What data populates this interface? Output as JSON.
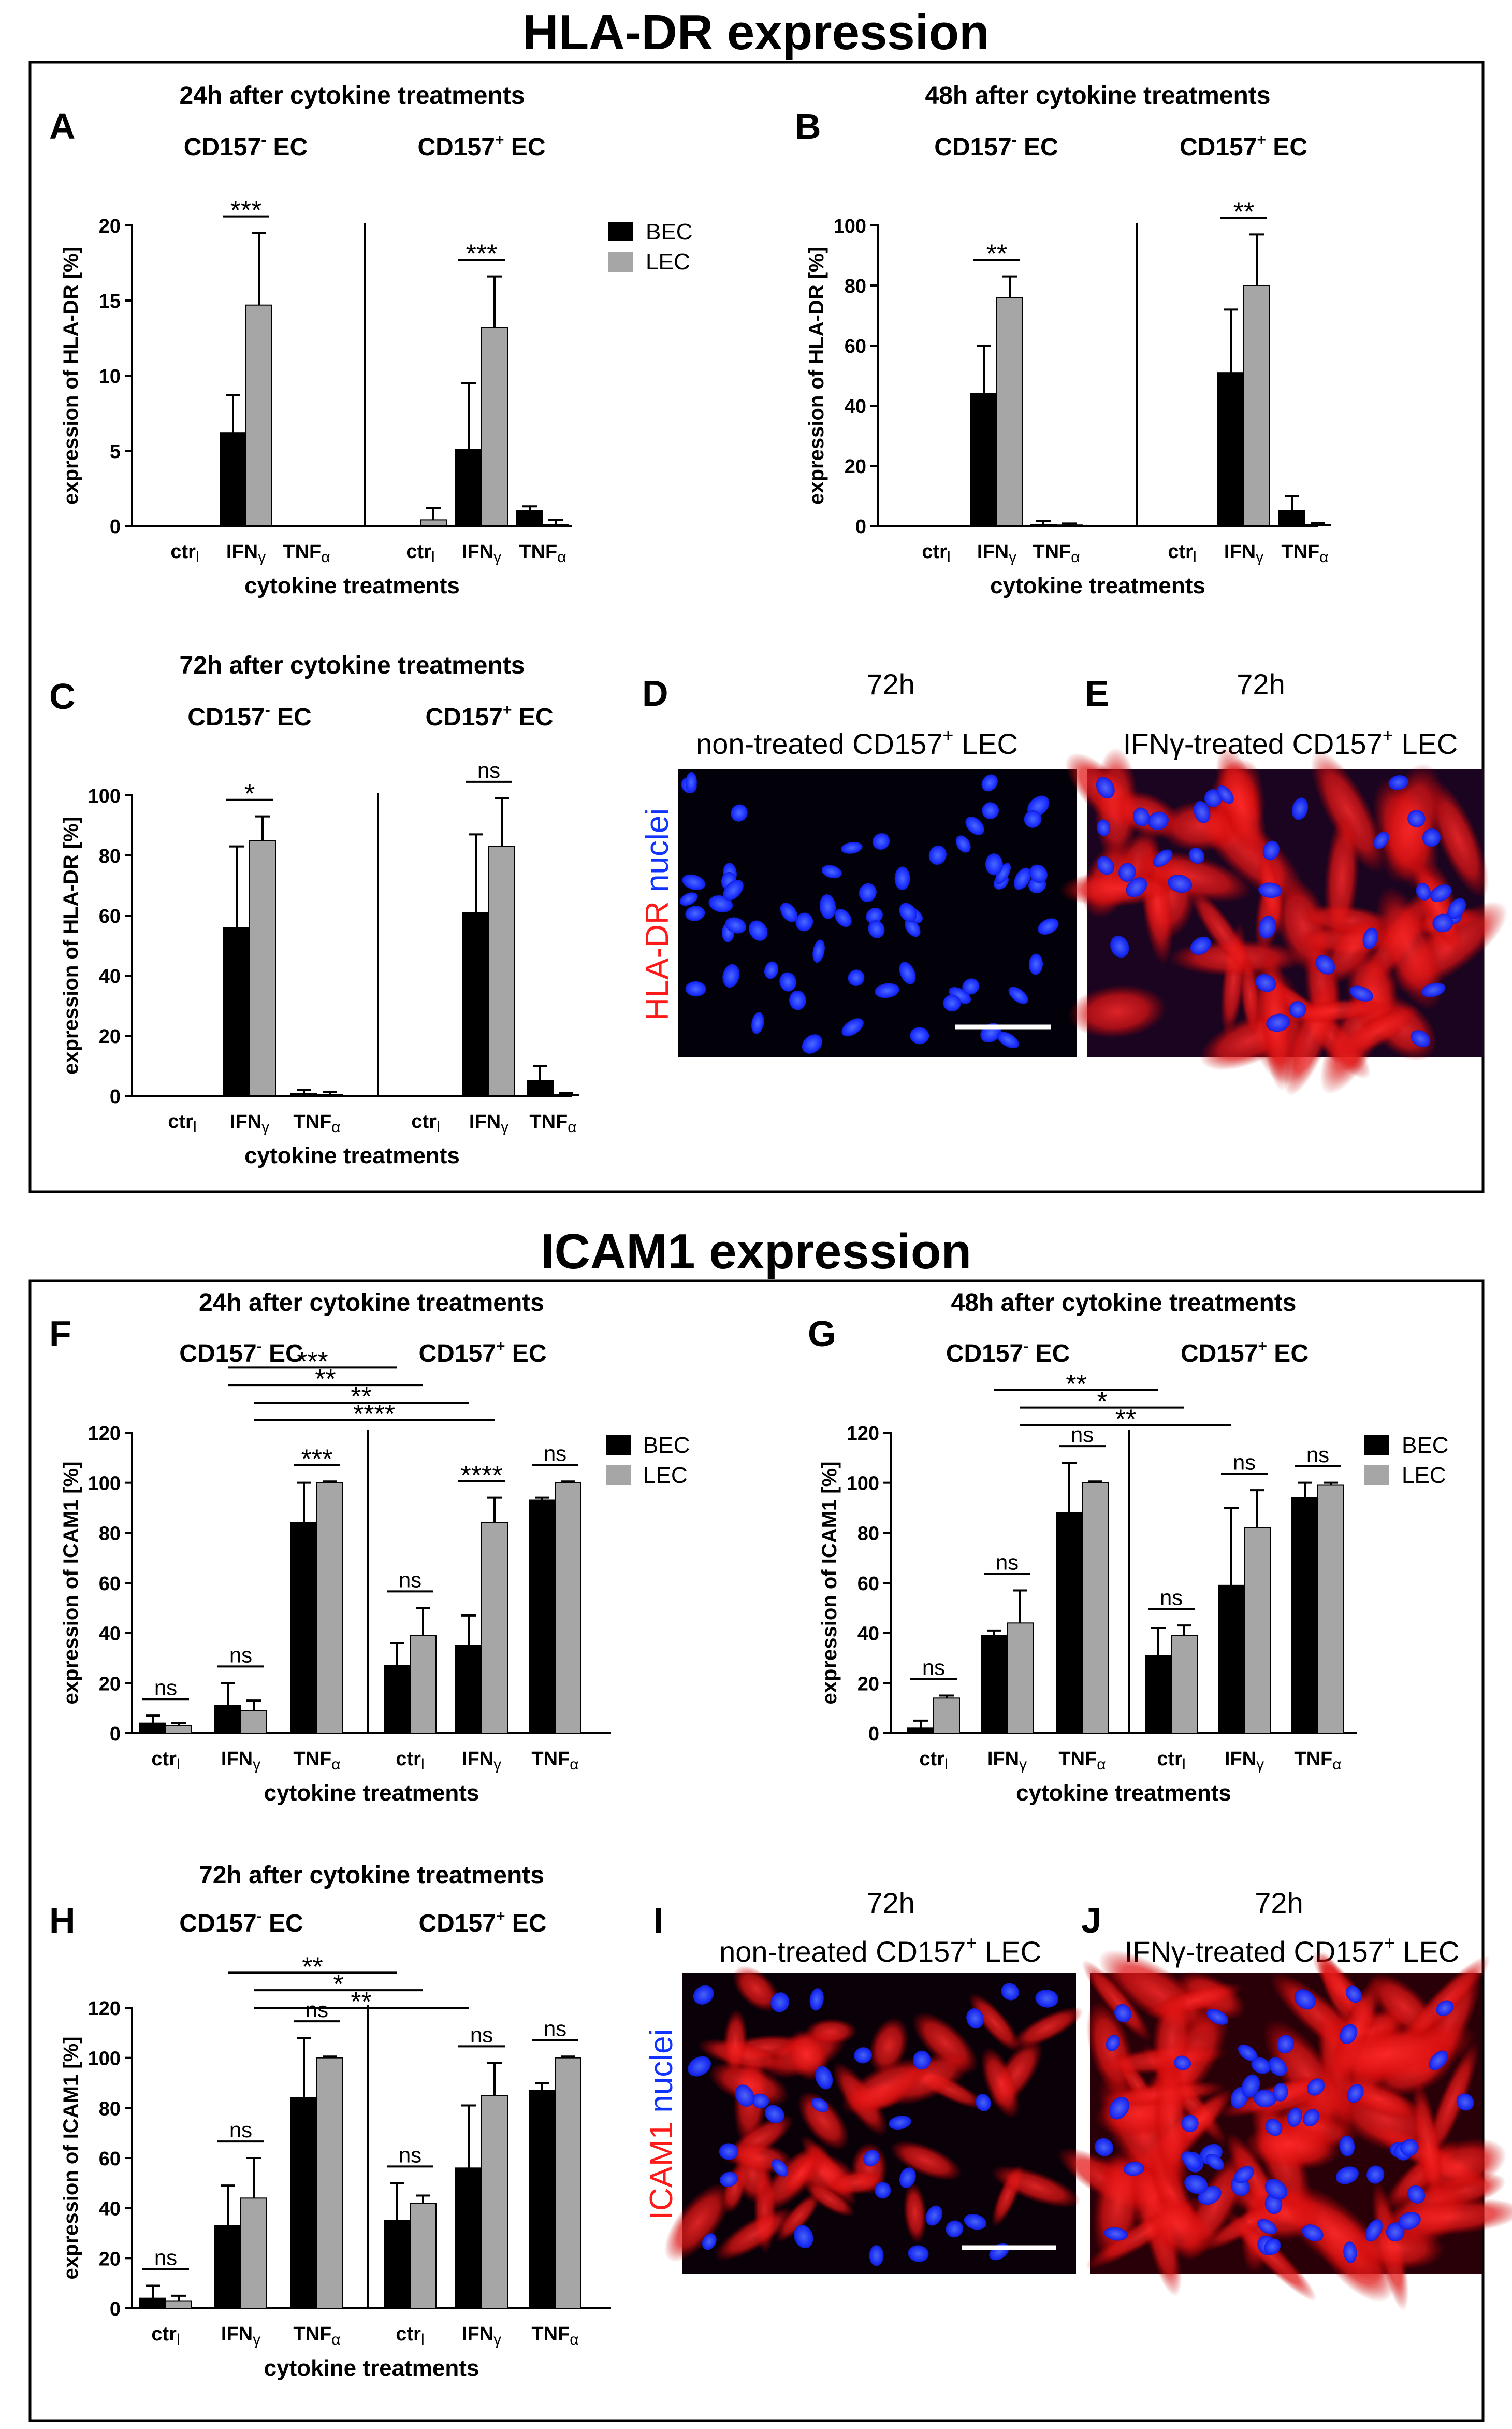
{
  "sections": {
    "hla_title": "HLA-DR expression",
    "icam_title": "ICAM1 expression"
  },
  "colors": {
    "bec": "#000000",
    "lec": "#a6a6a6",
    "nuclei": "#1133ff",
    "marker": "#ff1a1a",
    "micro_bg": "#0a0014"
  },
  "common": {
    "xlabel": "cytokine treatments",
    "neg_group": "CD157",
    "pos_group": "CD157",
    "neg_sign": "-",
    "pos_sign": "+",
    "ec": "EC",
    "legend": [
      "BEC",
      "LEC"
    ]
  },
  "chart_data": [
    {
      "id": "A",
      "type": "bar",
      "title": "24h after cytokine treatments",
      "ylabel": "expression of HLA-DR [%]",
      "ylim": [
        0,
        20
      ],
      "yticks": [
        0,
        5,
        10,
        15,
        20
      ],
      "categories": [
        "ctrl",
        "IFNγ",
        "TNFα",
        "ctrl",
        "IFNγ",
        "TNFα"
      ],
      "series": [
        {
          "name": "BEC",
          "values": [
            0,
            6.2,
            0,
            0,
            5.1,
            1.0
          ],
          "errors": [
            0,
            2.5,
            0,
            0,
            4.4,
            0.3
          ]
        },
        {
          "name": "LEC",
          "values": [
            0,
            14.7,
            0,
            0.4,
            13.2,
            0.1
          ],
          "errors": [
            0,
            4.8,
            0,
            0.8,
            3.4,
            0.3
          ]
        }
      ],
      "brackets": [
        {
          "label": "***",
          "from": [
            1,
            0
          ],
          "to": [
            1,
            1
          ],
          "local": true
        },
        {
          "label": "***",
          "from": [
            4,
            0
          ],
          "to": [
            4,
            1
          ],
          "local": true
        }
      ],
      "legend": true
    },
    {
      "id": "B",
      "type": "bar",
      "title": "48h after cytokine treatments",
      "ylabel": "expression of HLA-DR [%]",
      "ylim": [
        0,
        100
      ],
      "yticks": [
        0,
        20,
        40,
        60,
        80,
        100
      ],
      "categories": [
        "ctrl",
        "IFNγ",
        "TNFα",
        "ctrl",
        "IFNγ",
        "TNFα"
      ],
      "series": [
        {
          "name": "BEC",
          "values": [
            0,
            44,
            0.5,
            0,
            51,
            5
          ],
          "errors": [
            0,
            16,
            1.2,
            0,
            21,
            5
          ]
        },
        {
          "name": "LEC",
          "values": [
            0,
            76,
            0.3,
            0,
            80,
            0.4
          ],
          "errors": [
            0,
            7,
            0.5,
            0,
            17,
            0.6
          ]
        }
      ],
      "brackets": [
        {
          "label": "**",
          "from": [
            1,
            0
          ],
          "to": [
            1,
            1
          ],
          "local": true
        },
        {
          "label": "**",
          "from": [
            4,
            0
          ],
          "to": [
            4,
            1
          ],
          "local": true
        }
      ],
      "legend": false
    },
    {
      "id": "C",
      "type": "bar",
      "title": "72h after cytokine treatments",
      "ylabel": "expression of HLA-DR [%]",
      "ylim": [
        0,
        100
      ],
      "yticks": [
        0,
        20,
        40,
        60,
        80,
        100
      ],
      "categories": [
        "ctrl",
        "IFNγ",
        "TNFα",
        "ctrl",
        "IFNγ",
        "TNFα"
      ],
      "series": [
        {
          "name": "BEC",
          "values": [
            0,
            56,
            0.8,
            0,
            61,
            5
          ],
          "errors": [
            0,
            27,
            1.2,
            0,
            26,
            5
          ]
        },
        {
          "name": "LEC",
          "values": [
            0,
            85,
            0.5,
            0,
            83,
            0.5
          ],
          "errors": [
            0,
            8,
            0.8,
            0,
            16,
            0.5
          ]
        }
      ],
      "brackets": [
        {
          "label": "*",
          "from": [
            1,
            0
          ],
          "to": [
            1,
            1
          ],
          "local": true
        },
        {
          "label": "ns",
          "from": [
            4,
            0
          ],
          "to": [
            4,
            1
          ],
          "local": true
        }
      ],
      "legend": false
    },
    {
      "id": "F",
      "type": "bar",
      "title": "24h after cytokine treatments",
      "ylabel": "expression of ICAM1 [%]",
      "ylim": [
        0,
        120
      ],
      "yticks": [
        0,
        20,
        40,
        60,
        80,
        100,
        120
      ],
      "categories": [
        "ctrl",
        "IFNγ",
        "TNFα",
        "ctrl",
        "IFNγ",
        "TNFα"
      ],
      "series": [
        {
          "name": "BEC",
          "values": [
            4,
            11,
            84,
            27,
            35,
            93
          ],
          "errors": [
            3,
            9,
            16,
            9,
            12,
            1
          ]
        },
        {
          "name": "LEC",
          "values": [
            3,
            9,
            100,
            39,
            84,
            100
          ],
          "errors": [
            1,
            4,
            0.5,
            11,
            10,
            0.5
          ]
        }
      ],
      "brackets": [
        {
          "label": "ns",
          "from": [
            0,
            0
          ],
          "to": [
            0,
            1
          ],
          "local": true
        },
        {
          "label": "ns",
          "from": [
            1,
            0
          ],
          "to": [
            1,
            1
          ],
          "local": true
        },
        {
          "label": "***",
          "from": [
            2,
            0
          ],
          "to": [
            2,
            1
          ],
          "local": true
        },
        {
          "label": "ns",
          "from": [
            3,
            0
          ],
          "to": [
            3,
            1
          ],
          "local": true
        },
        {
          "label": "****",
          "from": [
            4,
            0
          ],
          "to": [
            4,
            1
          ],
          "local": true
        },
        {
          "label": "ns",
          "from": [
            5,
            0
          ],
          "to": [
            5,
            1
          ],
          "local": true
        },
        {
          "label": "***",
          "from": [
            1,
            0
          ],
          "to": [
            3,
            0
          ],
          "level": 146
        },
        {
          "label": "**",
          "from": [
            1,
            0
          ],
          "to": [
            3,
            1
          ],
          "level": 139
        },
        {
          "label": "**",
          "from": [
            1,
            1
          ],
          "to": [
            4,
            0
          ],
          "level": 132
        },
        {
          "label": "****",
          "from": [
            1,
            1
          ],
          "to": [
            4,
            1
          ],
          "level": 125
        }
      ],
      "legend": true
    },
    {
      "id": "G",
      "type": "bar",
      "title": "48h after cytokine treatments",
      "ylabel": "expression of ICAM1 [%]",
      "ylim": [
        0,
        120
      ],
      "yticks": [
        0,
        20,
        40,
        60,
        80,
        100,
        120
      ],
      "categories": [
        "ctrl",
        "IFNγ",
        "TNFα",
        "ctrl",
        "IFNγ",
        "TNFα"
      ],
      "series": [
        {
          "name": "BEC",
          "values": [
            2,
            39,
            88,
            31,
            59,
            94
          ],
          "errors": [
            3,
            2,
            20,
            11,
            31,
            6
          ]
        },
        {
          "name": "LEC",
          "values": [
            14,
            44,
            100,
            39,
            82,
            99
          ],
          "errors": [
            1,
            13,
            0.5,
            4,
            15,
            1
          ]
        }
      ],
      "brackets": [
        {
          "label": "ns",
          "from": [
            0,
            0
          ],
          "to": [
            0,
            1
          ],
          "local": true
        },
        {
          "label": "ns",
          "from": [
            1,
            0
          ],
          "to": [
            1,
            1
          ],
          "local": true
        },
        {
          "label": "ns",
          "from": [
            2,
            0
          ],
          "to": [
            2,
            1
          ],
          "local": true
        },
        {
          "label": "ns",
          "from": [
            3,
            0
          ],
          "to": [
            3,
            1
          ],
          "local": true
        },
        {
          "label": "ns",
          "from": [
            4,
            0
          ],
          "to": [
            4,
            1
          ],
          "local": true
        },
        {
          "label": "ns",
          "from": [
            5,
            0
          ],
          "to": [
            5,
            1
          ],
          "local": true
        },
        {
          "label": "**",
          "from": [
            1,
            0
          ],
          "to": [
            3,
            0
          ],
          "level": 137
        },
        {
          "label": "*",
          "from": [
            1,
            1
          ],
          "to": [
            3,
            1
          ],
          "level": 130
        },
        {
          "label": "**",
          "from": [
            1,
            1
          ],
          "to": [
            4,
            0
          ],
          "level": 123
        }
      ],
      "legend": true
    },
    {
      "id": "H",
      "type": "bar",
      "title": "72h after cytokine treatments",
      "ylabel": "expression of ICAM1 [%]",
      "ylim": [
        0,
        120
      ],
      "yticks": [
        0,
        20,
        40,
        60,
        80,
        100,
        120
      ],
      "categories": [
        "ctrl",
        "IFNγ",
        "TNFα",
        "ctrl",
        "IFNγ",
        "TNFα"
      ],
      "series": [
        {
          "name": "BEC",
          "values": [
            4,
            33,
            84,
            35,
            56,
            87
          ],
          "errors": [
            5,
            16,
            24,
            15,
            25,
            3
          ]
        },
        {
          "name": "LEC",
          "values": [
            3,
            44,
            100,
            42,
            85,
            100
          ],
          "errors": [
            2,
            16,
            0.5,
            3,
            13,
            0.5
          ]
        }
      ],
      "brackets": [
        {
          "label": "ns",
          "from": [
            0,
            0
          ],
          "to": [
            0,
            1
          ],
          "local": true
        },
        {
          "label": "ns",
          "from": [
            1,
            0
          ],
          "to": [
            1,
            1
          ],
          "local": true
        },
        {
          "label": "ns",
          "from": [
            2,
            0
          ],
          "to": [
            2,
            1
          ],
          "local": true
        },
        {
          "label": "ns",
          "from": [
            3,
            0
          ],
          "to": [
            3,
            1
          ],
          "local": true
        },
        {
          "label": "ns",
          "from": [
            4,
            0
          ],
          "to": [
            4,
            1
          ],
          "local": true
        },
        {
          "label": "ns",
          "from": [
            5,
            0
          ],
          "to": [
            5,
            1
          ],
          "local": true
        },
        {
          "label": "**",
          "from": [
            1,
            0
          ],
          "to": [
            3,
            0
          ],
          "level": 134
        },
        {
          "label": "*",
          "from": [
            1,
            1
          ],
          "to": [
            3,
            1
          ],
          "level": 127
        },
        {
          "label": "**",
          "from": [
            1,
            1
          ],
          "to": [
            4,
            0
          ],
          "level": 120
        }
      ],
      "legend": false
    }
  ],
  "micrographs": {
    "D": {
      "time": "72h",
      "caption_pre": "non-treated CD157",
      "caption_sup": "+",
      "caption_post": " LEC"
    },
    "E": {
      "time": "72h",
      "caption_pre": "IFNγ-treated  CD157",
      "caption_sup": "+",
      "caption_post": " LEC"
    },
    "I": {
      "time": "72h",
      "caption_pre": "non-treated CD157",
      "caption_sup": "+",
      "caption_post": " LEC"
    },
    "J": {
      "time": "72h",
      "caption_pre": "IFNγ-treated  CD157",
      "caption_sup": "+",
      "caption_post": " LEC"
    },
    "hla_marker": "HLA-DR",
    "icam_marker": "ICAM1",
    "nuclei": "nuclei"
  }
}
